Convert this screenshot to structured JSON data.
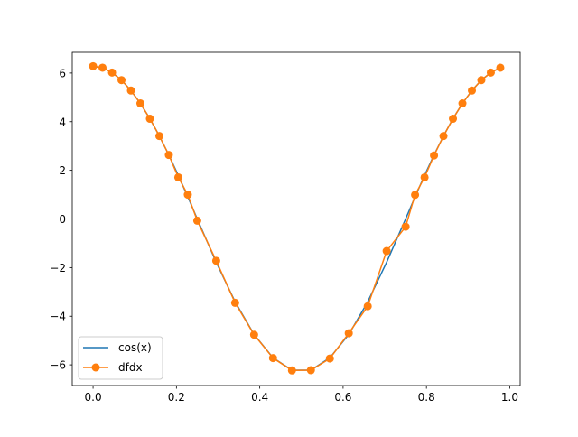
{
  "chart_data": {
    "type": "line",
    "xlim": [
      -0.05,
      1.025
    ],
    "ylim": [
      -6.85,
      6.85
    ],
    "x_ticks": [
      0.0,
      0.2,
      0.4,
      0.6,
      0.8,
      1.0
    ],
    "x_tick_labels": [
      "0.0",
      "0.2",
      "0.4",
      "0.6",
      "0.8",
      "1.0"
    ],
    "y_ticks": [
      -6,
      -4,
      -2,
      0,
      2,
      4,
      6
    ],
    "y_tick_labels": [
      "−6",
      "−4",
      "−2",
      "0",
      "2",
      "4",
      "6"
    ],
    "grid": false,
    "legend": {
      "position": "lower-left"
    },
    "series": [
      {
        "name": "cos(x)",
        "color": "#1f77b4",
        "marker": "none",
        "x": [
          0.0,
          0.0227,
          0.0455,
          0.0682,
          0.0909,
          0.1136,
          0.1364,
          0.1591,
          0.1818,
          0.2045,
          0.2273,
          0.25,
          0.2955,
          0.3409,
          0.3864,
          0.4318,
          0.4773,
          0.5227,
          0.5682,
          0.6136,
          0.6591,
          0.7045,
          0.75,
          0.7727,
          0.7955,
          0.8182,
          0.8409,
          0.8636,
          0.8864,
          0.9091,
          0.9318,
          0.9545,
          0.9773
        ],
        "y": [
          6.28,
          6.22,
          6.02,
          5.71,
          5.28,
          4.75,
          4.12,
          3.41,
          2.63,
          1.79,
          0.91,
          0.0,
          -1.78,
          -3.41,
          -4.75,
          -5.71,
          -6.22,
          -6.22,
          -5.71,
          -4.75,
          -3.41,
          -1.78,
          0.0,
          0.91,
          1.79,
          2.63,
          3.41,
          4.12,
          4.75,
          5.28,
          5.71,
          6.02,
          6.22
        ]
      },
      {
        "name": "dfdx",
        "color": "#ff7f0e",
        "marker": "circle",
        "x": [
          0.0,
          0.0227,
          0.0455,
          0.0682,
          0.0909,
          0.1136,
          0.1364,
          0.1591,
          0.1818,
          0.2045,
          0.2273,
          0.25,
          0.2955,
          0.3409,
          0.3864,
          0.4318,
          0.4773,
          0.5227,
          0.5682,
          0.6136,
          0.6591,
          0.7045,
          0.75,
          0.7727,
          0.7955,
          0.8182,
          0.8409,
          0.8636,
          0.8864,
          0.9091,
          0.9318,
          0.9545,
          0.9773
        ],
        "y": [
          6.28,
          6.22,
          6.02,
          5.71,
          5.28,
          4.75,
          4.12,
          3.41,
          2.63,
          1.71,
          1.0,
          -0.07,
          -1.72,
          -3.45,
          -4.76,
          -5.72,
          -6.23,
          -6.22,
          -5.74,
          -4.7,
          -3.59,
          -1.32,
          -0.32,
          0.99,
          1.71,
          2.61,
          3.41,
          4.12,
          4.75,
          5.28,
          5.71,
          6.02,
          6.22
        ]
      }
    ]
  }
}
